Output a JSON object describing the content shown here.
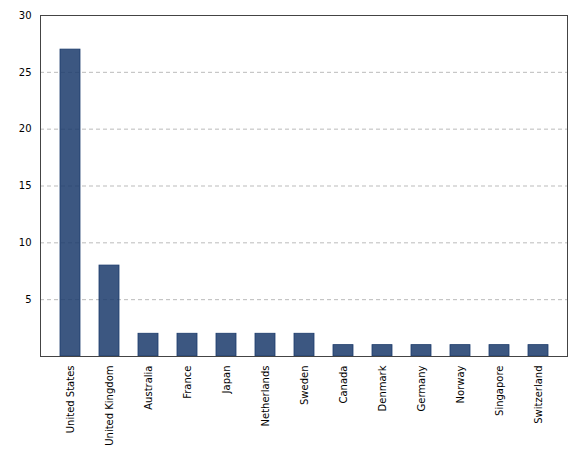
{
  "chart_data": {
    "type": "bar",
    "categories": [
      "United States",
      "United Kingdom",
      "Australia",
      "France",
      "Japan",
      "Netherlands",
      "Sweden",
      "Canada",
      "Denmark",
      "Germany",
      "Norway",
      "Singapore",
      "Switzerland"
    ],
    "values": [
      27,
      8,
      2,
      2,
      2,
      2,
      2,
      1,
      1,
      1,
      1,
      1,
      1
    ],
    "color": "#1a3a6b",
    "ylim": [
      0,
      30
    ],
    "yticks": [
      5,
      10,
      15,
      20,
      25,
      30
    ],
    "grid": true
  }
}
